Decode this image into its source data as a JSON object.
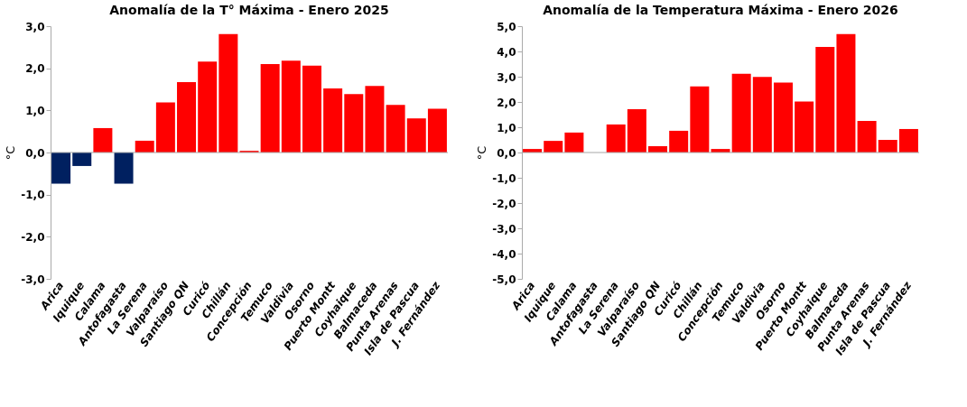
{
  "chart_data": [
    {
      "type": "bar",
      "title": "Anomalía de la T° Máxima - Enero 2025",
      "ylabel": "°C",
      "categories": [
        "Arica",
        "Iquique",
        "Calama",
        "Antofagasta",
        "La Serena",
        "Valparaíso",
        "Santiago QN",
        "Curicó",
        "Chillán",
        "Concepción",
        "Temuco",
        "Valdivia",
        "Osorno",
        "Puerto Montt",
        "Coyhaique",
        "Balmaceda",
        "Punta Arenas",
        "Isla de Pascua",
        "J. Fernández"
      ],
      "values": [
        -0.74,
        -0.32,
        0.58,
        -0.74,
        0.28,
        1.19,
        1.67,
        2.16,
        2.81,
        0.04,
        2.1,
        2.18,
        2.06,
        1.52,
        1.39,
        1.58,
        1.13,
        0.81,
        1.04
      ],
      "colors": [
        "#002060",
        "#002060",
        "#ff0000",
        "#002060",
        "#ff0000",
        "#ff0000",
        "#ff0000",
        "#ff0000",
        "#ff0000",
        "#ff0000",
        "#ff0000",
        "#ff0000",
        "#ff0000",
        "#ff0000",
        "#ff0000",
        "#ff0000",
        "#ff0000",
        "#ff0000",
        "#ff0000"
      ],
      "ylim": [
        -3,
        3
      ],
      "yticks": [
        {
          "value": -3,
          "label": "-3,0"
        },
        {
          "value": -2,
          "label": "-2,0"
        },
        {
          "value": -1,
          "label": "-1,0"
        },
        {
          "value": 0,
          "label": "0,0"
        },
        {
          "value": 1,
          "label": "1,0"
        },
        {
          "value": 2,
          "label": "2,0"
        },
        {
          "value": 3,
          "label": "3,0"
        }
      ],
      "grid": false,
      "ref_lines": [
        {
          "axis": "y",
          "value": 0,
          "color": "#a6a6a6"
        }
      ]
    },
    {
      "type": "bar",
      "title": "Anomalía de la Temperatura Máxima - Enero 2026",
      "ylabel": "°C",
      "categories": [
        "Arica",
        "Iquique",
        "Calama",
        "Antofagasta",
        "La Serena",
        "Valparaíso",
        "Santiago QN",
        "Curicó",
        "Chillán",
        "Concepción",
        "Temuco",
        "Valdivia",
        "Osorno",
        "Puerto Montt",
        "Coyhaique",
        "Balmaceda",
        "Punta Arenas",
        "Isla de Pascua",
        "J. Fernández"
      ],
      "values": [
        0.14,
        0.46,
        0.79,
        0.0,
        1.11,
        1.71,
        0.25,
        0.86,
        2.62,
        0.14,
        3.12,
        2.99,
        2.77,
        2.02,
        4.18,
        4.69,
        1.25,
        0.5,
        0.93
      ],
      "color": "#ff0000",
      "ylim": [
        -5,
        5
      ],
      "yticks": [
        {
          "value": -5,
          "label": "-5,0"
        },
        {
          "value": -4,
          "label": "-4,0"
        },
        {
          "value": -3,
          "label": "-3,0"
        },
        {
          "value": -2,
          "label": "-2,0"
        },
        {
          "value": -1,
          "label": "-1,0"
        },
        {
          "value": 0,
          "label": "0,0"
        },
        {
          "value": 1,
          "label": "1,0"
        },
        {
          "value": 2,
          "label": "2,0"
        },
        {
          "value": 3,
          "label": "3,0"
        },
        {
          "value": 4,
          "label": "4,0"
        },
        {
          "value": 5,
          "label": "5,0"
        }
      ],
      "grid": false,
      "ref_lines": [
        {
          "axis": "y",
          "value": 0,
          "color": "#a6a6a6"
        }
      ]
    }
  ]
}
